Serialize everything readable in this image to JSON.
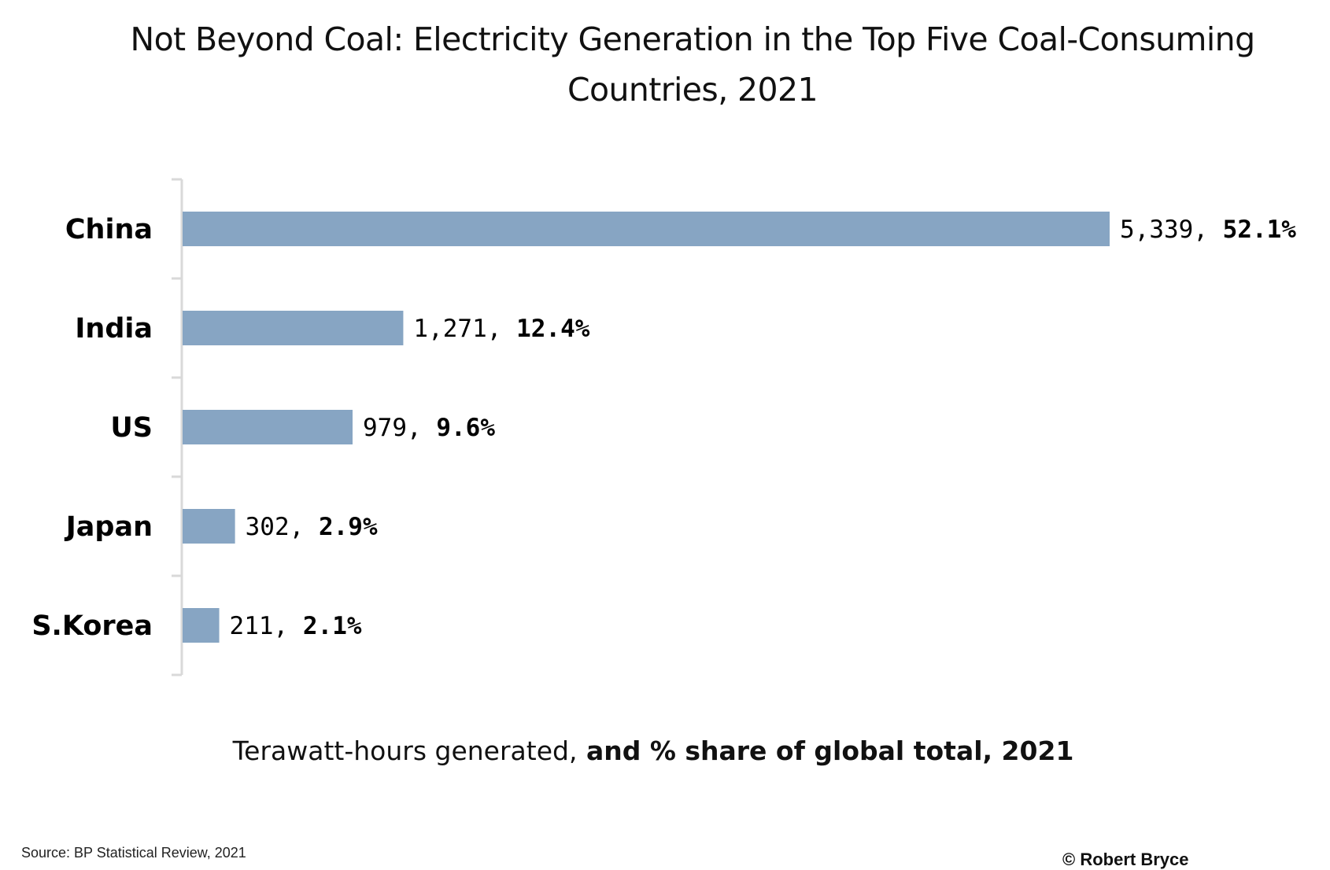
{
  "chart_data": {
    "type": "bar",
    "orientation": "horizontal",
    "title": "Not Beyond Coal: Electricity Generation in the Top Five Coal-Consuming Countries, 2021",
    "categories": [
      "China",
      "India",
      "US",
      "Japan",
      "S.Korea"
    ],
    "values": [
      5339,
      1271,
      979,
      302,
      211
    ],
    "shares": [
      52.1,
      12.4,
      9.6,
      2.9,
      2.1
    ],
    "value_labels": [
      "5,339,",
      "1,271,",
      "979,",
      "302,",
      "211,"
    ],
    "share_labels": [
      "52.1%",
      "12.4%",
      "9.6%",
      "2.9%",
      "2.1%"
    ],
    "xlabel_prefix": "Terawatt-hours generated,",
    "xlabel_bold": " and % share of global total, 2021",
    "xlim": [
      0,
      5339
    ],
    "grid": false,
    "bar_color": "#87A5C3",
    "axis_color": "#D9D9D9"
  },
  "footer": {
    "source": "Source:  BP Statistical Review, 2021",
    "copyright": "© Robert Bryce"
  }
}
